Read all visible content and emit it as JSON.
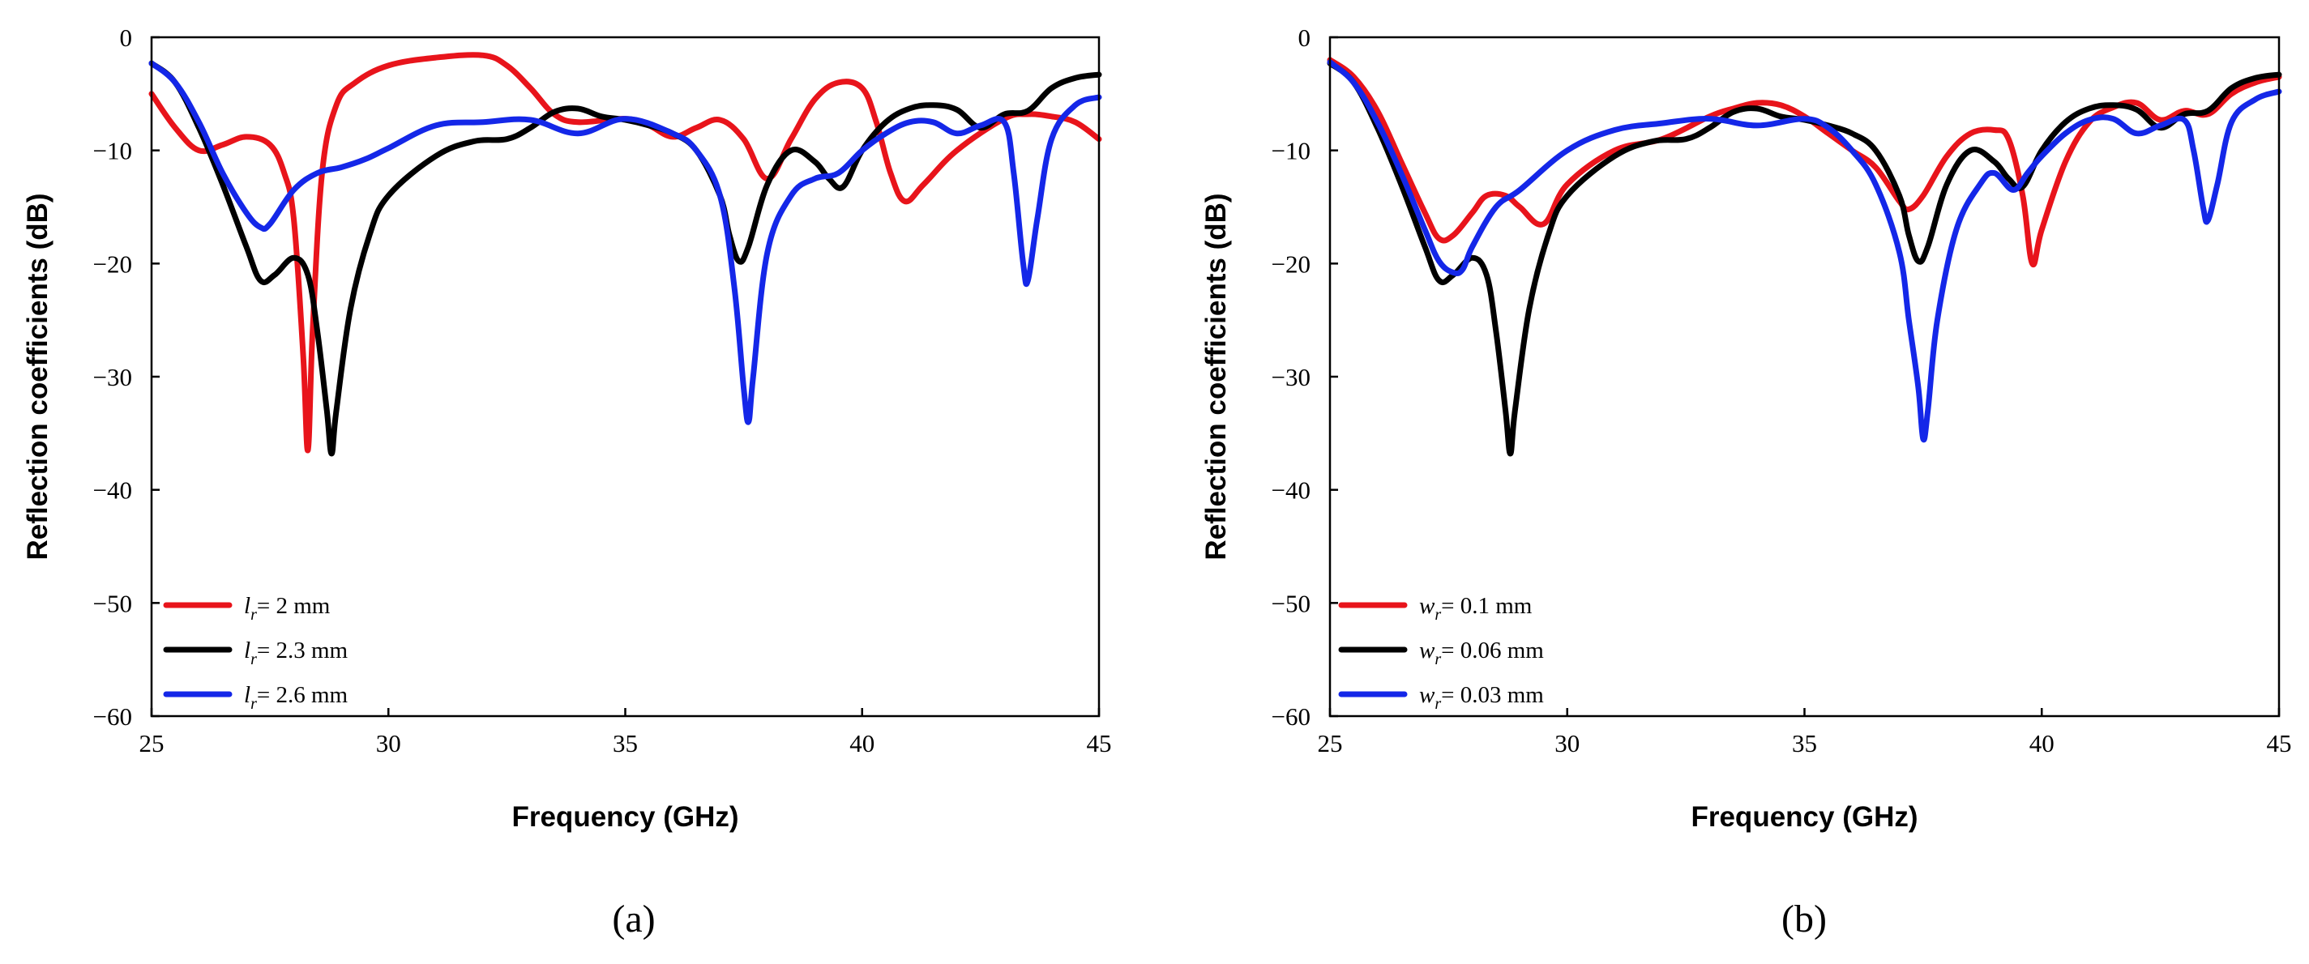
{
  "chart_data": [
    {
      "type": "line",
      "panel": "a",
      "caption": "(a)",
      "xlabel": "Frequency (GHz)",
      "ylabel": "Reflection coefficients (dB)",
      "xlim": [
        25,
        45
      ],
      "ylim": [
        -60,
        0
      ],
      "xticks": [
        25,
        30,
        35,
        40,
        45
      ],
      "yticks": [
        0,
        -10,
        -20,
        -30,
        -40,
        -50,
        -60
      ],
      "ytick_labels": [
        "0",
        "−10",
        "−20",
        "−30",
        "−40",
        "−50",
        "−60"
      ],
      "legend_position": "bottom-left",
      "series": [
        {
          "name": "l_r = 2 mm",
          "legend_symbol": "l",
          "legend_sub": "r",
          "legend_suffix": "= 2 mm",
          "color": "#e8141b",
          "x": [
            25,
            25.5,
            26,
            26.5,
            27,
            27.5,
            27.8,
            28,
            28.2,
            28.3,
            28.4,
            28.6,
            28.9,
            29.3,
            30,
            31,
            32,
            32.5,
            33,
            33.5,
            34,
            35,
            35.5,
            36,
            36.5,
            37,
            37.5,
            38,
            38.5,
            39,
            39.5,
            40,
            40.3,
            40.6,
            40.9,
            41.3,
            42,
            43,
            43.5,
            44,
            44.5,
            45
          ],
          "y": [
            -5,
            -8,
            -10,
            -9.5,
            -8.8,
            -9.5,
            -12,
            -16,
            -28,
            -36.5,
            -26,
            -12,
            -6,
            -4,
            -2.5,
            -1.8,
            -1.6,
            -2.5,
            -4.5,
            -6.8,
            -7.5,
            -7.2,
            -7.8,
            -8.8,
            -8,
            -7.3,
            -9,
            -12.5,
            -9,
            -5.5,
            -4,
            -4.5,
            -7.5,
            -12,
            -14.5,
            -13,
            -10,
            -7.2,
            -6.8,
            -7,
            -7.5,
            -9
          ]
        },
        {
          "name": "l_r = 2.3 mm",
          "legend_symbol": "l",
          "legend_sub": "r",
          "legend_suffix": "= 2.3 mm",
          "color": "#000000",
          "x": [
            25,
            25.5,
            26,
            26.5,
            27,
            27.3,
            27.6,
            28,
            28.3,
            28.5,
            28.7,
            28.8,
            28.9,
            29.2,
            29.6,
            30,
            31,
            31.8,
            32.5,
            33,
            33.5,
            34,
            34.5,
            35,
            35.5,
            36,
            36.5,
            37,
            37.2,
            37.4,
            37.6,
            38,
            38.5,
            39,
            39.3,
            39.6,
            40,
            40.5,
            41,
            41.5,
            42,
            42.5,
            43,
            43.5,
            44,
            44.5,
            45
          ],
          "y": [
            -2.3,
            -4,
            -8,
            -13,
            -18.5,
            -21.5,
            -21,
            -19.5,
            -21,
            -26,
            -33,
            -36.8,
            -33,
            -24,
            -17.5,
            -14,
            -10.5,
            -9.2,
            -9,
            -8,
            -6.6,
            -6.3,
            -7,
            -7.3,
            -7.8,
            -8.5,
            -10,
            -14,
            -17.5,
            -19.8,
            -18.5,
            -13,
            -10,
            -11,
            -12.5,
            -13.2,
            -10,
            -7.5,
            -6.3,
            -6,
            -6.4,
            -8,
            -6.8,
            -6.5,
            -4.5,
            -3.6,
            -3.3
          ]
        },
        {
          "name": "l_r = 2.6 mm",
          "legend_symbol": "l",
          "legend_sub": "r",
          "legend_suffix": "= 2.6 mm",
          "color": "#1427e8",
          "x": [
            25,
            25.5,
            26,
            26.5,
            27,
            27.3,
            27.5,
            28,
            28.5,
            29,
            29.5,
            30,
            31,
            32,
            33,
            34,
            35,
            36,
            36.5,
            37,
            37.3,
            37.5,
            37.6,
            37.7,
            38,
            38.5,
            39,
            39.5,
            40,
            40.5,
            41,
            41.5,
            42,
            42.5,
            43,
            43.2,
            43.4,
            43.5,
            43.7,
            44,
            44.5,
            45
          ],
          "y": [
            -2.3,
            -4,
            -7.5,
            -12,
            -15.5,
            -16.8,
            -16.5,
            -13.5,
            -12,
            -11.5,
            -10.8,
            -9.8,
            -7.8,
            -7.5,
            -7.3,
            -8.5,
            -7.2,
            -8.5,
            -10,
            -14,
            -22,
            -31,
            -34,
            -30,
            -19,
            -14,
            -12.5,
            -12,
            -10,
            -8.5,
            -7.5,
            -7.5,
            -8.5,
            -7.8,
            -7.5,
            -12,
            -20,
            -21.5,
            -16,
            -9,
            -6,
            -5.3
          ]
        }
      ]
    },
    {
      "type": "line",
      "panel": "b",
      "caption": "(b)",
      "xlabel": "Frequency (GHz)",
      "ylabel": "Reflection coefficients (dB)",
      "xlim": [
        25,
        45
      ],
      "ylim": [
        -60,
        0
      ],
      "xticks": [
        25,
        30,
        35,
        40,
        45
      ],
      "yticks": [
        0,
        -10,
        -20,
        -30,
        -40,
        -50,
        -60
      ],
      "ytick_labels": [
        "0",
        "−10",
        "−20",
        "−30",
        "−40",
        "−50",
        "−60"
      ],
      "legend_position": "bottom-left",
      "series": [
        {
          "name": "w_r = 0.1 mm",
          "legend_symbol": "w",
          "legend_sub": "r",
          "legend_suffix": "= 0.1 mm",
          "color": "#e8141b",
          "x": [
            25,
            25.5,
            26,
            26.5,
            27,
            27.3,
            27.6,
            28,
            28.3,
            28.7,
            29,
            29.5,
            30,
            31,
            32,
            33,
            33.5,
            34,
            34.5,
            35,
            35.5,
            36,
            36.5,
            37,
            37.2,
            37.5,
            38,
            38.5,
            39,
            39.3,
            39.6,
            39.8,
            40,
            40.5,
            41,
            41.5,
            42,
            42.5,
            43,
            43.5,
            44,
            44.5,
            45
          ],
          "y": [
            -2,
            -3.5,
            -6.5,
            -11,
            -15.5,
            -17.8,
            -17.5,
            -15.5,
            -14,
            -14,
            -15,
            -16.5,
            -13,
            -10,
            -9,
            -7,
            -6.3,
            -5.8,
            -6,
            -7,
            -8.5,
            -10,
            -11.5,
            -14.5,
            -15.2,
            -14,
            -10.5,
            -8.5,
            -8.2,
            -9,
            -14,
            -20,
            -17,
            -11,
            -7.5,
            -6.2,
            -5.8,
            -7.3,
            -6.5,
            -6.8,
            -5,
            -4,
            -3.5
          ]
        },
        {
          "name": "w_r = 0.06 mm",
          "legend_symbol": "w",
          "legend_sub": "r",
          "legend_suffix": "= 0.06 mm",
          "color": "#000000",
          "x": [
            25,
            25.5,
            26,
            26.5,
            27,
            27.3,
            27.6,
            28,
            28.3,
            28.5,
            28.7,
            28.8,
            28.9,
            29.2,
            29.6,
            30,
            31,
            31.8,
            32.5,
            33,
            33.5,
            34,
            34.5,
            35,
            35.5,
            36,
            36.5,
            37,
            37.2,
            37.4,
            37.6,
            38,
            38.5,
            39,
            39.3,
            39.6,
            40,
            40.5,
            41,
            41.5,
            42,
            42.5,
            43,
            43.5,
            44,
            44.5,
            45
          ],
          "y": [
            -2.3,
            -4,
            -8,
            -13,
            -18.5,
            -21.5,
            -21,
            -19.5,
            -21,
            -26,
            -33,
            -36.8,
            -33,
            -24,
            -17.5,
            -14,
            -10.5,
            -9.2,
            -9,
            -8,
            -6.6,
            -6.3,
            -7,
            -7.3,
            -7.8,
            -8.5,
            -10,
            -14,
            -17.5,
            -19.8,
            -18.5,
            -13,
            -10,
            -11,
            -12.5,
            -13.2,
            -10,
            -7.5,
            -6.3,
            -6,
            -6.4,
            -8,
            -6.8,
            -6.5,
            -4.5,
            -3.6,
            -3.3
          ]
        },
        {
          "name": "w_r = 0.03 mm",
          "legend_symbol": "w",
          "legend_sub": "r",
          "legend_suffix": "= 0.03 mm",
          "color": "#1427e8",
          "x": [
            25,
            25.5,
            26,
            26.5,
            27,
            27.3,
            27.6,
            27.8,
            28,
            28.5,
            29,
            30,
            31,
            32,
            33,
            34,
            35,
            35.5,
            36,
            36.5,
            37,
            37.2,
            37.4,
            37.5,
            37.6,
            37.8,
            38.2,
            38.7,
            39,
            39.4,
            39.7,
            40,
            40.5,
            41,
            41.5,
            42,
            42.5,
            43,
            43.2,
            43.4,
            43.5,
            43.7,
            44,
            44.5,
            45
          ],
          "y": [
            -2.2,
            -4,
            -7.5,
            -12,
            -17,
            -19.8,
            -20.8,
            -20.5,
            -18.5,
            -15,
            -13.5,
            -10,
            -8.2,
            -7.6,
            -7.2,
            -7.8,
            -7.2,
            -8,
            -10,
            -13,
            -19,
            -25,
            -31,
            -35.5,
            -33,
            -25,
            -17,
            -13,
            -12,
            -13.5,
            -12,
            -10.5,
            -8.5,
            -7.3,
            -7.2,
            -8.5,
            -7.8,
            -7.3,
            -10,
            -15,
            -16.2,
            -13,
            -7.5,
            -5.5,
            -4.8
          ]
        }
      ]
    }
  ]
}
